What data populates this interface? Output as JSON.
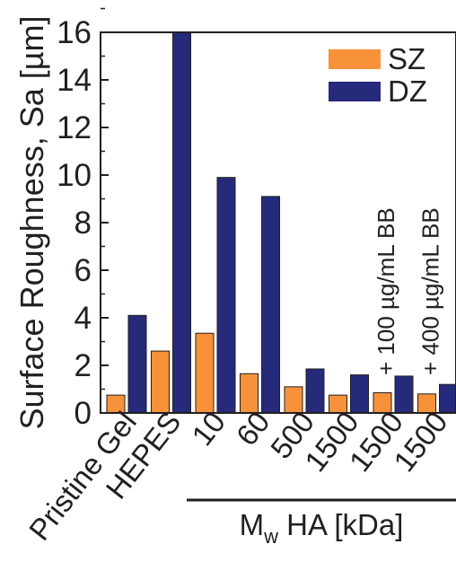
{
  "chart_data": {
    "type": "bar",
    "ylabel": "Surface Roughness, Sa [µm]",
    "xlabel_main": "M",
    "xlabel_sub": "w",
    "xlabel_rest": " HA [kDa]",
    "ylim": [
      0,
      16
    ],
    "yticks": [
      "0",
      "2",
      "4",
      "6",
      "8",
      "10",
      "12",
      "14",
      "16"
    ],
    "categories": [
      "Pristine Gel",
      "HEPES",
      "10",
      "60",
      "500",
      "1500",
      "1500",
      "1500"
    ],
    "series": [
      {
        "name": "SZ",
        "color": "#f7923a",
        "values": [
          0.75,
          2.6,
          3.35,
          1.65,
          1.1,
          0.75,
          0.85,
          0.8
        ]
      },
      {
        "name": "DZ",
        "color": "#262a7a",
        "values": [
          4.1,
          16.0,
          9.9,
          9.1,
          1.85,
          1.6,
          1.55,
          1.2
        ]
      }
    ],
    "annotations": [
      "+ 100 µg/mL BB",
      "+ 400 µg/mL BB"
    ],
    "legend_position": "top-right",
    "grid": false
  }
}
